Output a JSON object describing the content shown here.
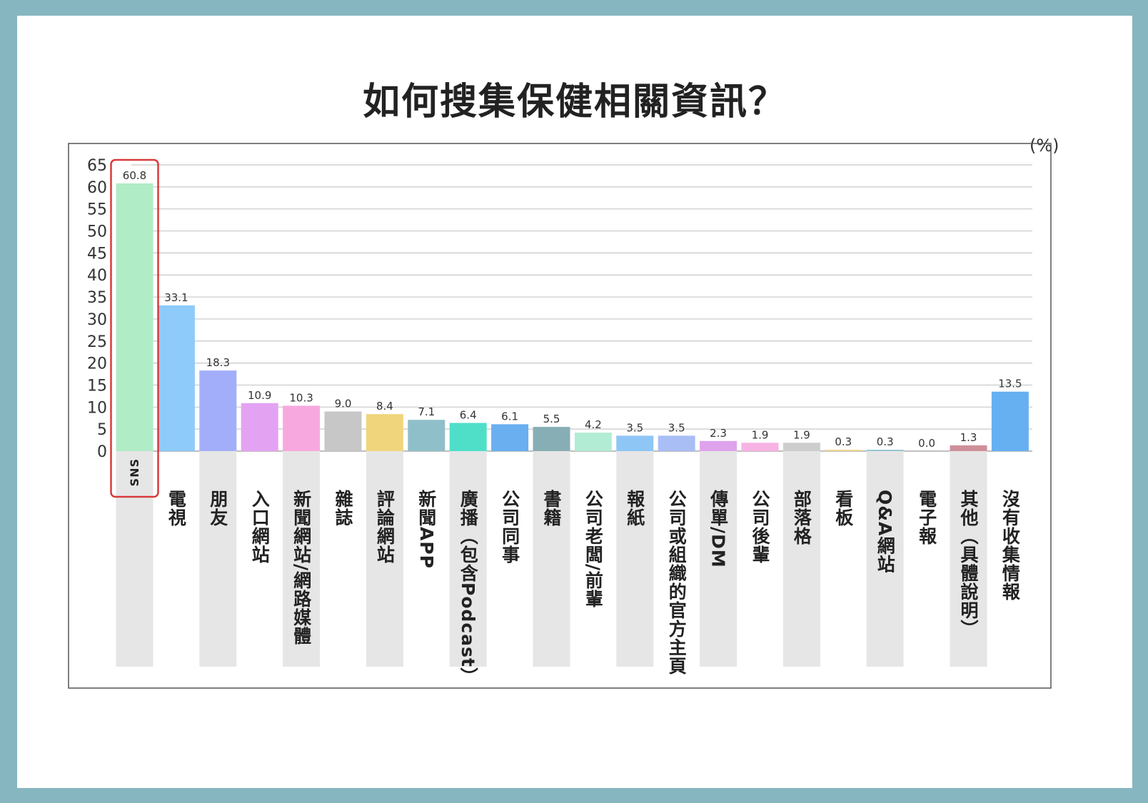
{
  "title": "如何搜集保健相關資訊？",
  "unit": "(%)",
  "chart_data": {
    "type": "bar",
    "title": "如何搜集保健相關資訊？",
    "ylabel": "(%)",
    "ylim": [
      0,
      65
    ],
    "yticks": [
      0,
      5,
      10,
      15,
      20,
      25,
      30,
      35,
      40,
      45,
      50,
      55,
      60,
      65
    ],
    "grid": true,
    "highlight": "SNS",
    "categories": [
      "SNS",
      "電視",
      "朋友",
      "入口網站",
      "新聞網站/網路媒體",
      "雜誌",
      "評論網站",
      "新聞APP",
      "廣播（包含Podcast）",
      "公司同事",
      "書籍",
      "公司老闆/前輩",
      "報紙",
      "公司或組織的官方主頁",
      "傳單/DM",
      "公司後輩",
      "部落格",
      "看板",
      "Q&A網站",
      "電子報",
      "其他（具體說明）",
      "沒有收集情報"
    ],
    "values": [
      60.8,
      33.1,
      18.3,
      10.9,
      10.3,
      9.0,
      8.4,
      7.1,
      6.4,
      6.1,
      5.5,
      4.2,
      3.5,
      3.5,
      2.3,
      1.9,
      1.9,
      0.3,
      0.3,
      0.0,
      1.3,
      13.5
    ],
    "value_labels": [
      "60.8",
      "33.1",
      "18.3",
      "10.9",
      "10.3",
      "9.0",
      "8.4",
      "7.1",
      "6.4",
      "6.1",
      "5.5",
      "4.2",
      "3.5",
      "3.5",
      "2.3",
      "1.9",
      "1.9",
      "0.3",
      "0.3",
      "0.0",
      "1.3",
      "13.5"
    ],
    "colors": [
      "#b0ecc6",
      "#8ecbfa",
      "#a3aefa",
      "#e3a3f2",
      "#f7a9df",
      "#c6c7c6",
      "#f0d57d",
      "#8fbfc9",
      "#4fdfc9",
      "#6aaff0",
      "#88aeb5",
      "#b3ecd5",
      "#8ec6f5",
      "#a9bef5",
      "#dfa2ec",
      "#f6b3e3",
      "#cdcdcd",
      "#f1d489",
      "#90c2cf",
      "#40d9b9",
      "#cf8f9a",
      "#66b0f2"
    ]
  }
}
